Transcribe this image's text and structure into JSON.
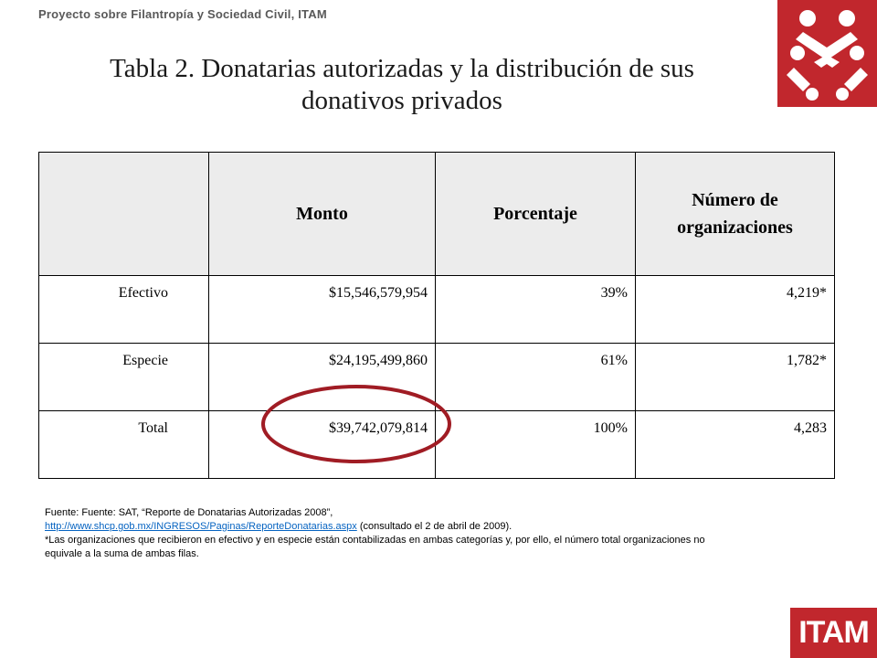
{
  "header": {
    "text": "Proyecto sobre Filantropía y Sociedad Civil, ITAM"
  },
  "title": {
    "line1": "Tabla 2. Donatarias autorizadas y la distribución de sus",
    "line2": "donativos privados"
  },
  "table": {
    "columns": [
      "",
      "Monto",
      "Porcentaje",
      "Número de organizaciones"
    ],
    "rows": [
      {
        "label": "Efectivo",
        "monto": "$15,546,579,954",
        "porcentaje": "39%",
        "organizaciones": "4,219*"
      },
      {
        "label": "Especie",
        "monto": "$24,195,499,860",
        "porcentaje": "61%",
        "organizaciones": "1,782*"
      },
      {
        "label": "Total",
        "monto": "$39,742,079,814",
        "porcentaje": "100%",
        "organizaciones": "4,283"
      }
    ],
    "highlight_color": "#a01c24"
  },
  "footnote": {
    "source": "Fuente: Fuente: SAT, “Reporte de Donatarias Autorizadas 2008”,",
    "link": "http://www.shcp.gob.mx/INGRESOS/Paginas/ReporteDonatarias.aspx",
    "consulted": " (consultado el 2 de abril de 2009).",
    "note": "*Las organizaciones que recibieron en efectivo y en especie están contabilizadas en ambas categorías y, por ello, el número total organizaciones no equivale a la suma de ambas filas."
  },
  "logos": {
    "bottom_text": "ITAM",
    "brand_color": "#c1272d"
  }
}
